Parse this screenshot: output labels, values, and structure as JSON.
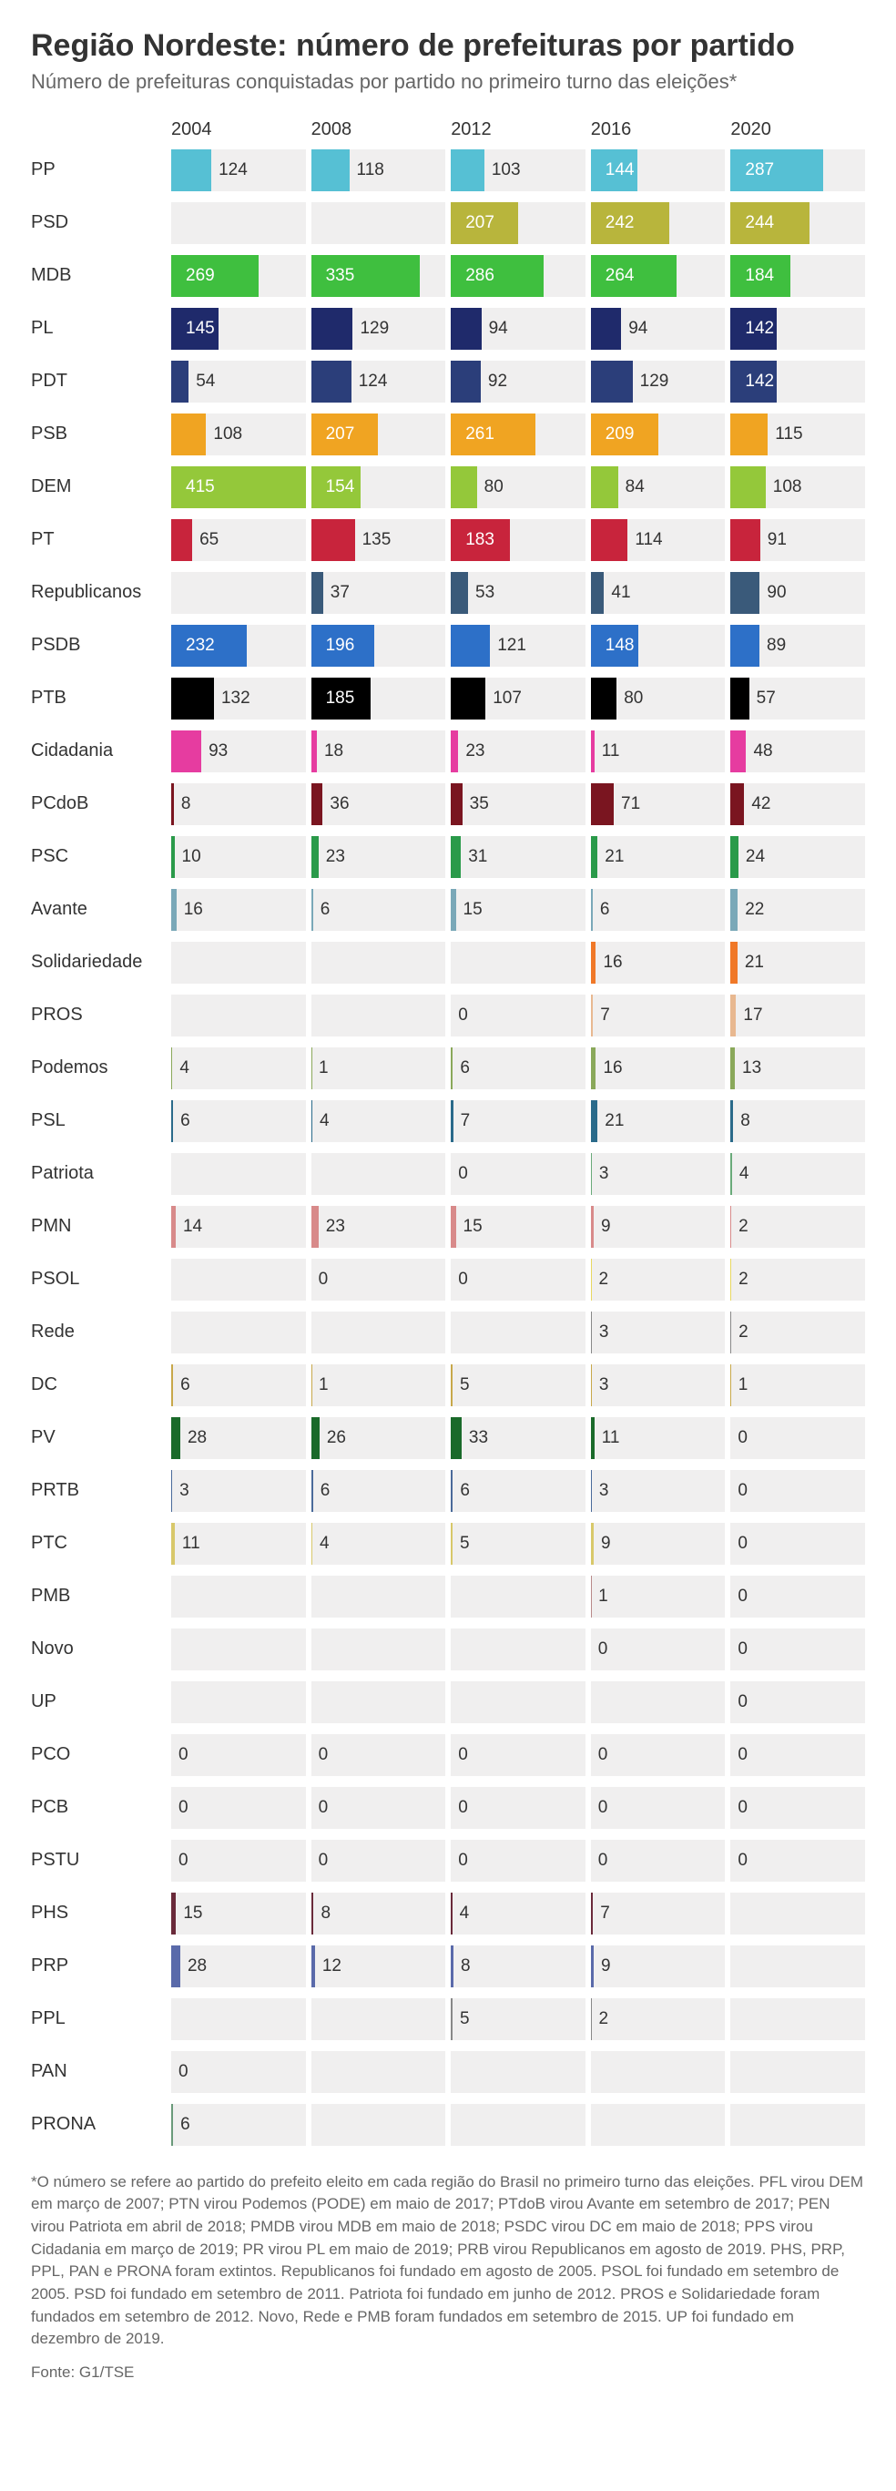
{
  "title": "Região Nordeste: número de prefeituras por partido",
  "subtitle": "Número de prefeituras conquistadas por partido no primeiro turno das eleições*",
  "years": [
    "2004",
    "2008",
    "2012",
    "2016",
    "2020"
  ],
  "max_value": 415,
  "cell_bg": "#f0efef",
  "value_fontsize": 19,
  "label_fontsize": 20,
  "parties": [
    {
      "name": "PP",
      "color": "#56c0d4",
      "values": [
        124,
        118,
        103,
        144,
        287
      ]
    },
    {
      "name": "PSD",
      "color": "#b8b53c",
      "values": [
        null,
        null,
        207,
        242,
        244
      ]
    },
    {
      "name": "MDB",
      "color": "#3fbf3f",
      "values": [
        269,
        335,
        286,
        264,
        184
      ]
    },
    {
      "name": "PL",
      "color": "#1f2a6b",
      "values": [
        145,
        129,
        94,
        94,
        142
      ]
    },
    {
      "name": "PDT",
      "color": "#2b3e7a",
      "values": [
        54,
        124,
        92,
        129,
        142
      ]
    },
    {
      "name": "PSB",
      "color": "#f0a422",
      "values": [
        108,
        207,
        261,
        209,
        115
      ]
    },
    {
      "name": "DEM",
      "color": "#94c83a",
      "values": [
        415,
        154,
        80,
        84,
        108
      ]
    },
    {
      "name": "PT",
      "color": "#c8243c",
      "values": [
        65,
        135,
        183,
        114,
        91
      ]
    },
    {
      "name": "Republicanos",
      "color": "#3a5a7a",
      "values": [
        null,
        37,
        53,
        41,
        90
      ]
    },
    {
      "name": "PSDB",
      "color": "#2d70c8",
      "values": [
        232,
        196,
        121,
        148,
        89
      ]
    },
    {
      "name": "PTB",
      "color": "#000000",
      "values": [
        132,
        185,
        107,
        80,
        57
      ]
    },
    {
      "name": "Cidadania",
      "color": "#e63ca0",
      "values": [
        93,
        18,
        23,
        11,
        48
      ]
    },
    {
      "name": "PCdoB",
      "color": "#7a1520",
      "values": [
        8,
        36,
        35,
        71,
        42
      ]
    },
    {
      "name": "PSC",
      "color": "#2a9a4a",
      "values": [
        10,
        23,
        31,
        21,
        24
      ]
    },
    {
      "name": "Avante",
      "color": "#7aa8b8",
      "values": [
        16,
        6,
        15,
        6,
        22
      ]
    },
    {
      "name": "Solidariedade",
      "color": "#f07828",
      "values": [
        null,
        null,
        null,
        16,
        21
      ]
    },
    {
      "name": "PROS",
      "color": "#e8b890",
      "values": [
        null,
        null,
        0,
        7,
        17
      ]
    },
    {
      "name": "Podemos",
      "color": "#8aa85a",
      "values": [
        4,
        1,
        6,
        16,
        13
      ]
    },
    {
      "name": "PSL",
      "color": "#2a6a8a",
      "values": [
        6,
        4,
        7,
        21,
        8
      ]
    },
    {
      "name": "Patriota",
      "color": "#6aaa7a",
      "values": [
        null,
        null,
        0,
        3,
        4
      ]
    },
    {
      "name": "PMN",
      "color": "#d88a8a",
      "values": [
        14,
        23,
        15,
        9,
        2
      ]
    },
    {
      "name": "PSOL",
      "color": "#e8d860",
      "values": [
        null,
        0,
        0,
        2,
        2
      ]
    },
    {
      "name": "Rede",
      "color": "#888888",
      "values": [
        null,
        null,
        null,
        3,
        2
      ]
    },
    {
      "name": "DC",
      "color": "#c8a84a",
      "values": [
        6,
        1,
        5,
        3,
        1
      ]
    },
    {
      "name": "PV",
      "color": "#1a6a2a",
      "values": [
        28,
        26,
        33,
        11,
        0
      ]
    },
    {
      "name": "PRTB",
      "color": "#4a6a9a",
      "values": [
        3,
        6,
        6,
        3,
        0
      ]
    },
    {
      "name": "PTC",
      "color": "#d8c86a",
      "values": [
        11,
        4,
        5,
        9,
        0
      ]
    },
    {
      "name": "PMB",
      "color": "#b88a8a",
      "values": [
        null,
        null,
        null,
        1,
        0
      ]
    },
    {
      "name": "Novo",
      "color": "#888888",
      "values": [
        null,
        null,
        null,
        0,
        0
      ]
    },
    {
      "name": "UP",
      "color": "#888888",
      "values": [
        null,
        null,
        null,
        null,
        0
      ]
    },
    {
      "name": "PCO",
      "color": "#888888",
      "values": [
        0,
        0,
        0,
        0,
        0
      ]
    },
    {
      "name": "PCB",
      "color": "#888888",
      "values": [
        0,
        0,
        0,
        0,
        0
      ]
    },
    {
      "name": "PSTU",
      "color": "#888888",
      "values": [
        0,
        0,
        0,
        0,
        0
      ]
    },
    {
      "name": "PHS",
      "color": "#6a2a3a",
      "values": [
        15,
        8,
        4,
        7,
        null
      ]
    },
    {
      "name": "PRP",
      "color": "#5a6aaa",
      "values": [
        28,
        12,
        8,
        9,
        null
      ]
    },
    {
      "name": "PPL",
      "color": "#888888",
      "values": [
        null,
        null,
        5,
        2,
        null
      ]
    },
    {
      "name": "PAN",
      "color": "#888888",
      "values": [
        0,
        null,
        null,
        null,
        null
      ]
    },
    {
      "name": "PRONA",
      "color": "#6a9a7a",
      "values": [
        6,
        null,
        null,
        null,
        null
      ]
    }
  ],
  "footnote": "*O número se refere ao partido do prefeito eleito em cada região do Brasil no primeiro turno das eleições. PFL virou DEM em março de 2007; PTN virou Podemos (PODE) em maio de 2017; PTdoB virou Avante em setembro de 2017; PEN virou Patriota em abril de 2018; PMDB virou MDB em maio de 2018; PSDC virou DC em maio de 2018; PPS virou Cidadania em março de 2019; PR virou PL em maio de 2019; PRB virou Republicanos em agosto de 2019. PHS, PRP, PPL, PAN e PRONA foram extintos. Republicanos foi fundado em agosto de 2005. PSOL foi fundado em setembro de 2005. PSD foi fundado em setembro de 2011. Patriota foi fundado em junho de 2012. PROS e Solidariedade foram fundados em setembro de 2012. Novo, Rede e PMB foram fundados em setembro de 2015. UP foi fundado em dezembro de 2019.",
  "source": "Fonte: G1/TSE"
}
